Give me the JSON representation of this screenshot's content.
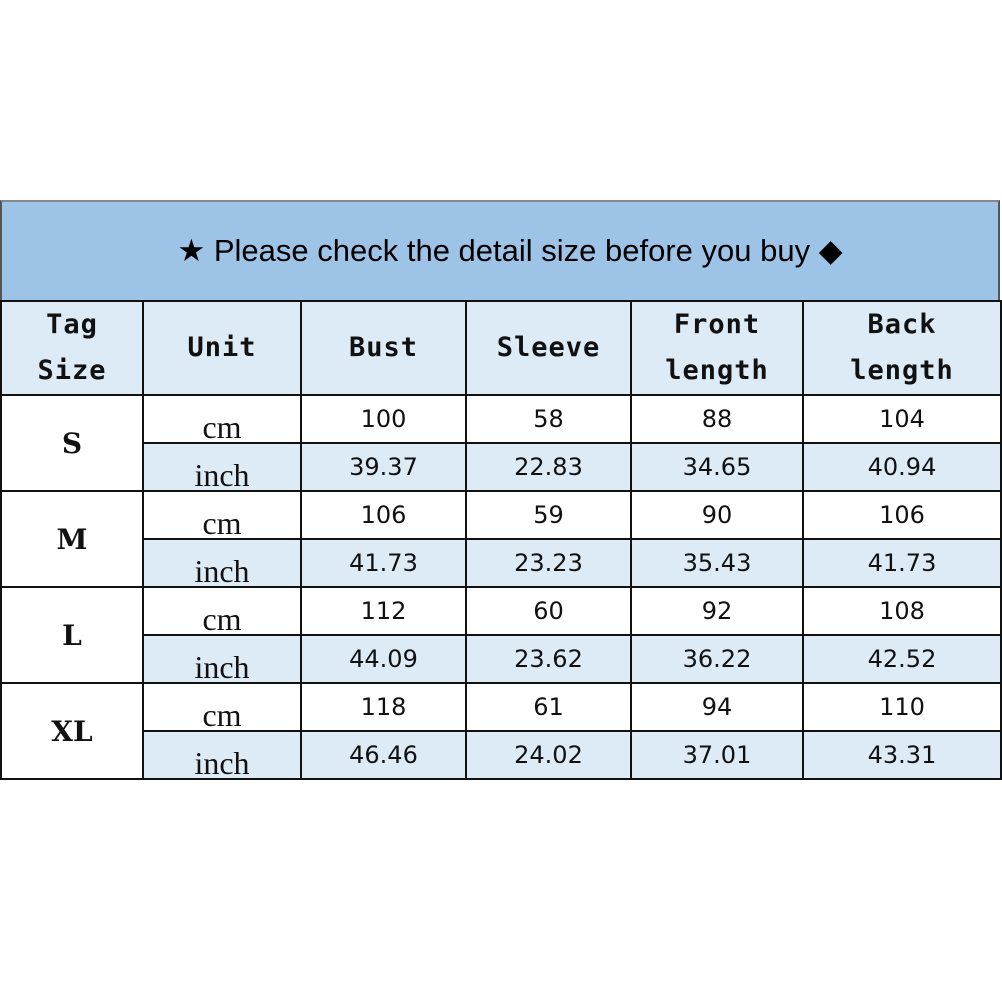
{
  "banner": {
    "text": "★ Please check the detail size before you buy ◆"
  },
  "headers": [
    "Tag\nSize",
    "Unit",
    "Bust",
    "Sleeve",
    "Front\nlength",
    "Back\nlength"
  ],
  "colors": {
    "banner": "#9dc3e6",
    "header": "#ddebf7",
    "inch_row": "#ddebf7"
  },
  "rows": [
    {
      "size": "S",
      "cm": [
        "100",
        "58",
        "88",
        "104"
      ],
      "inch": [
        "39.37",
        "22.83",
        "34.65",
        "40.94"
      ]
    },
    {
      "size": "M",
      "cm": [
        "106",
        "59",
        "90",
        "106"
      ],
      "inch": [
        "41.73",
        "23.23",
        "35.43",
        "41.73"
      ]
    },
    {
      "size": "L",
      "cm": [
        "112",
        "60",
        "92",
        "108"
      ],
      "inch": [
        "44.09",
        "23.62",
        "36.22",
        "42.52"
      ]
    },
    {
      "size": "XL",
      "cm": [
        "118",
        "61",
        "94",
        "110"
      ],
      "inch": [
        "46.46",
        "24.02",
        "37.01",
        "43.31"
      ]
    }
  ],
  "units": {
    "cm": "cm",
    "inch": "inch"
  }
}
